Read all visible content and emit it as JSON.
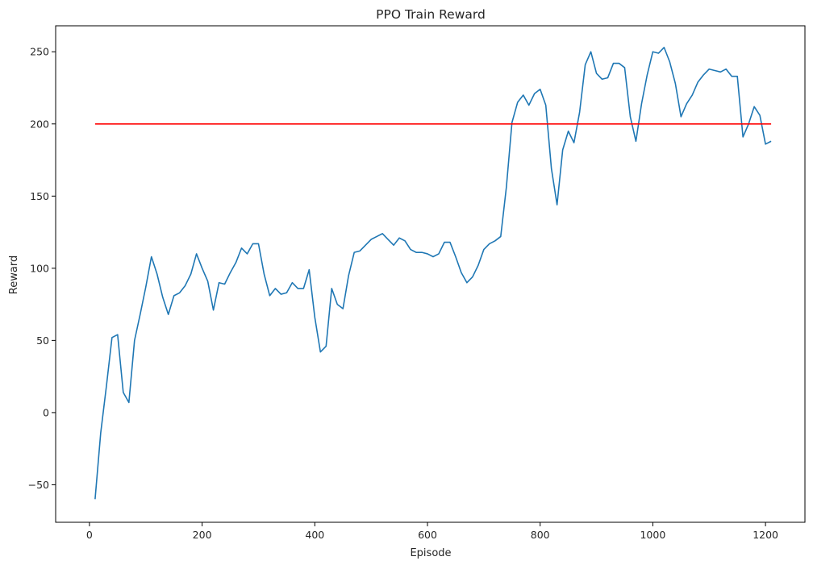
{
  "chart_data": {
    "type": "line",
    "title": "PPO Train Reward",
    "xlabel": "Episode",
    "ylabel": "Reward",
    "xlim": [
      -60,
      1270
    ],
    "ylim": [
      -76,
      268
    ],
    "xticks": [
      0,
      200,
      400,
      600,
      800,
      1000,
      1200
    ],
    "yticks": [
      -50,
      0,
      50,
      100,
      150,
      200,
      250
    ],
    "grid": false,
    "colors": {
      "series": "#1f77b4",
      "threshold": "#ff0000"
    },
    "series": [
      {
        "x": [
          10,
          20,
          30,
          40,
          50,
          60,
          70,
          80,
          90,
          100,
          110,
          120,
          130,
          140,
          150,
          160,
          170,
          180,
          190,
          200,
          210,
          220,
          230,
          240,
          250,
          260,
          270,
          280,
          290,
          300,
          310,
          320,
          330,
          340,
          350,
          360,
          370,
          380,
          390,
          400,
          410,
          420,
          430,
          440,
          450,
          460,
          470,
          480,
          490,
          500,
          510,
          520,
          530,
          540,
          550,
          560,
          570,
          580,
          590,
          600,
          610,
          620,
          630,
          640,
          650,
          660,
          670,
          680,
          690,
          700,
          710,
          720,
          730,
          740,
          750,
          760,
          770,
          780,
          790,
          800,
          810,
          820,
          830,
          840,
          850,
          860,
          870,
          880,
          890,
          900,
          910,
          920,
          930,
          940,
          950,
          960,
          970,
          980,
          990,
          1000,
          1010,
          1020,
          1030,
          1040,
          1050,
          1060,
          1070,
          1080,
          1090,
          1100,
          1110,
          1120,
          1130,
          1140,
          1150,
          1160,
          1170,
          1180,
          1190,
          1200,
          1210
        ],
        "values": [
          -60,
          -14,
          18,
          52,
          54,
          14,
          7,
          50,
          68,
          87,
          108,
          96,
          80,
          68,
          81,
          83,
          88,
          96,
          110,
          100,
          91,
          71,
          90,
          89,
          97,
          104,
          114,
          110,
          117,
          117,
          96,
          81,
          86,
          82,
          83,
          90,
          86,
          86,
          99,
          66,
          42,
          46,
          86,
          75,
          72,
          95,
          111,
          112,
          116,
          120,
          122,
          124,
          120,
          116,
          121,
          119,
          113,
          111,
          111,
          110,
          108,
          110,
          118,
          118,
          108,
          97,
          90,
          94,
          102,
          113,
          117,
          119,
          122,
          156,
          201,
          215,
          220,
          213,
          221,
          224,
          213,
          169,
          144,
          182,
          195,
          187,
          208,
          241,
          250,
          235,
          231,
          232,
          242,
          242,
          239,
          205,
          188,
          214,
          234,
          250,
          249,
          253,
          243,
          228,
          205,
          214,
          220,
          229,
          234,
          238,
          237,
          236,
          238,
          233,
          233,
          191,
          200,
          212,
          206,
          186,
          188
        ]
      },
      {
        "x": [
          10,
          1210
        ],
        "values": [
          200,
          200
        ]
      }
    ]
  }
}
